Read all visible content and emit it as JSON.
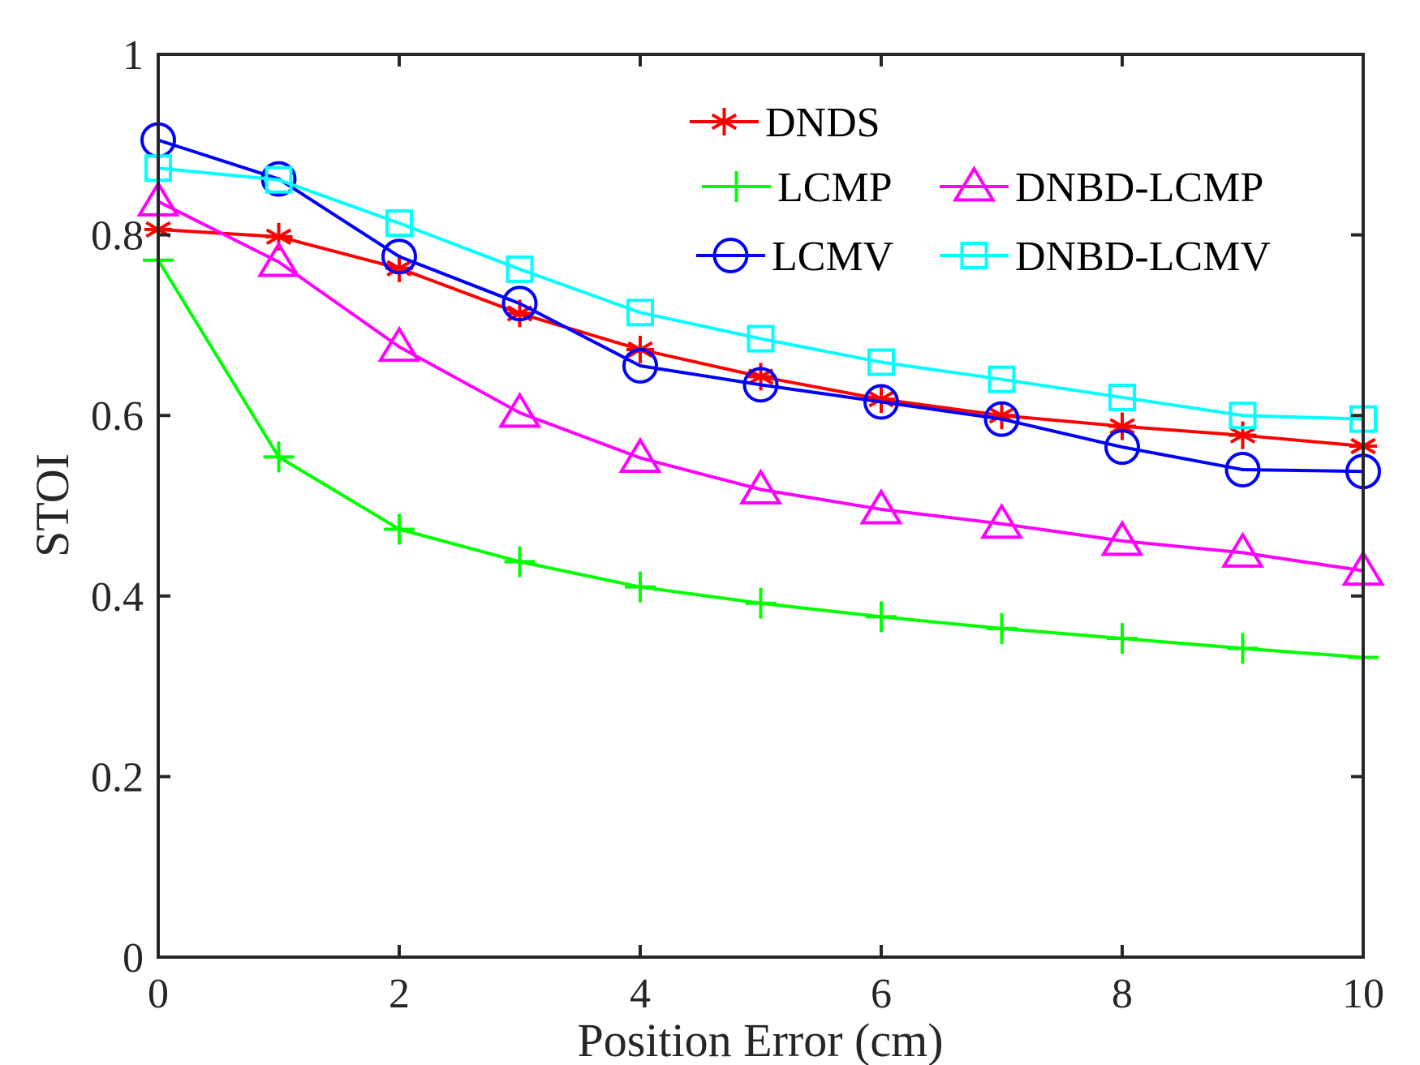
{
  "chart_data": {
    "type": "line",
    "title": "",
    "xlabel": "Position Error (cm)",
    "ylabel": "STOI",
    "xlim": [
      0,
      10
    ],
    "ylim": [
      0,
      1
    ],
    "xticks": [
      "0",
      "2",
      "4",
      "6",
      "8",
      "10"
    ],
    "yticks": [
      "0",
      "0.2",
      "0.4",
      "0.6",
      "0.8",
      "1"
    ],
    "grid": false,
    "legend_position": "top-right",
    "x": [
      0,
      1,
      2,
      3,
      4,
      5,
      6,
      7,
      8,
      9,
      10
    ],
    "series": [
      {
        "name": "DNDS",
        "color": "#ff0000",
        "marker": "asterisk",
        "values": [
          0.806,
          0.798,
          0.763,
          0.713,
          0.673,
          0.643,
          0.618,
          0.6,
          0.588,
          0.578,
          0.566
        ]
      },
      {
        "name": "LCMP",
        "color": "#00ff00",
        "marker": "plus",
        "values": [
          0.772,
          0.554,
          0.474,
          0.438,
          0.41,
          0.392,
          0.377,
          0.364,
          0.353,
          0.342,
          0.332
        ]
      },
      {
        "name": "DNBD-LCMP",
        "color": "#ff00ff",
        "marker": "triangle",
        "values": [
          0.837,
          0.77,
          0.676,
          0.603,
          0.553,
          0.518,
          0.496,
          0.48,
          0.461,
          0.448,
          0.428
        ]
      },
      {
        "name": "LCMV",
        "color": "#0000ff",
        "marker": "circle",
        "values": [
          0.905,
          0.862,
          0.776,
          0.724,
          0.655,
          0.634,
          0.615,
          0.596,
          0.565,
          0.54,
          0.538
        ]
      },
      {
        "name": "DNBD-LCMV",
        "color": "#00ffff",
        "marker": "square",
        "values": [
          0.874,
          0.861,
          0.813,
          0.762,
          0.714,
          0.685,
          0.659,
          0.64,
          0.62,
          0.6,
          0.596
        ]
      }
    ]
  }
}
